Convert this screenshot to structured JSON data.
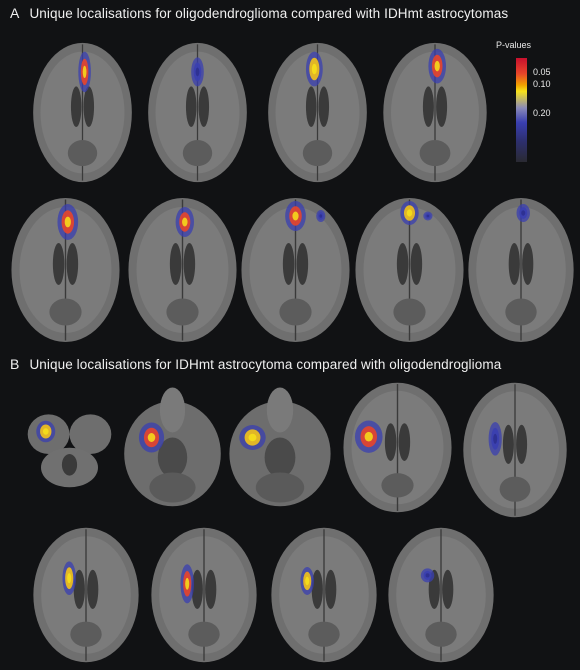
{
  "panels": [
    {
      "letter": "A",
      "title": "Unique localisations for oligodendroglioma compared with IDHmt astrocytomas",
      "rows": [
        {
          "slices": [
            "a1",
            "a2",
            "a3",
            "a4"
          ]
        },
        {
          "slices": [
            "a5",
            "a6",
            "a7",
            "a8",
            "a9"
          ]
        }
      ]
    },
    {
      "letter": "B",
      "title": "Unique localisations for IDHmt astrocytoma compared with oligodendroglioma",
      "rows": [
        {
          "slices": [
            "b1",
            "b2",
            "b3",
            "b4",
            "b5"
          ]
        },
        {
          "slices": [
            "b6",
            "b7",
            "b8",
            "b9"
          ]
        }
      ]
    }
  ],
  "legend": {
    "title": "P-values",
    "ticks": [
      "0.05",
      "0.10",
      "0.20"
    ],
    "colors": {
      "high": "#c8102e",
      "mid": "#f7e21a",
      "low": "#3a3fb0",
      "none": "#2a2a32"
    }
  },
  "colors": {
    "background": "#111214",
    "brain_gray": "#6f6f6f",
    "brain_dark": "#3c3c3c",
    "text": "#f0f0f0"
  }
}
